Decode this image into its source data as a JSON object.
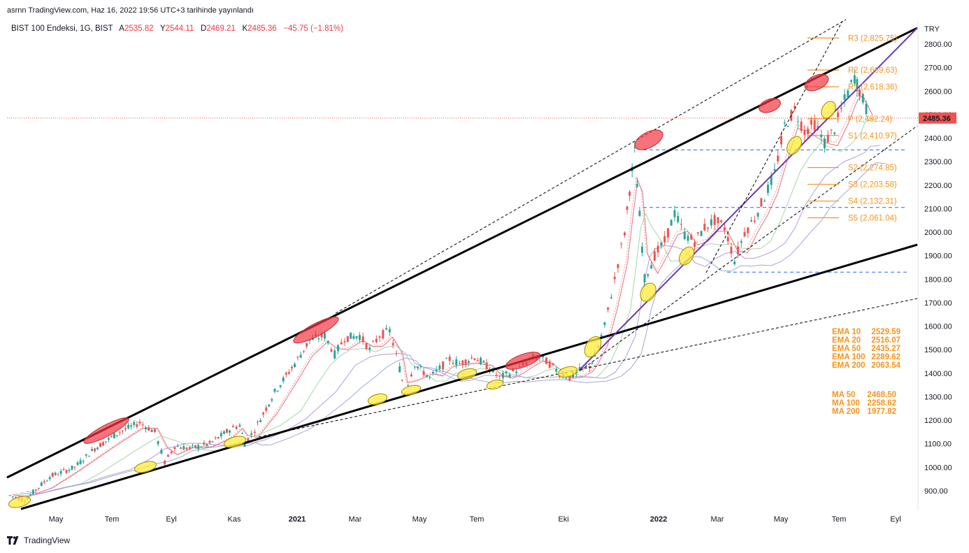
{
  "header": {
    "text": "asrnn TradingView.com, Haz 16, 2022 19:56 UTC+3 tarihinde yayınlandı"
  },
  "legend": {
    "symbol": "BIST 100 Endeksi, 1G, BIST",
    "o_label": "A",
    "o": "2535.82",
    "h_label": "Y",
    "h": "2544.11",
    "l_label": "D",
    "l": "2469.21",
    "c_label": "K",
    "c": "2485.36",
    "change": "−45.75 (−1.81%)"
  },
  "footer": {
    "brand": "TradingView",
    "icon": "tradingview-logo-icon"
  },
  "colors": {
    "up": "#26a69a",
    "down": "#ef5350",
    "pivot": "#f7931a",
    "trend": "#000000",
    "purple": "#6a3ab2"
  },
  "chart_data": {
    "type": "candlestick",
    "currency": "TRY",
    "last_price": "2485.36",
    "y_ticks": [
      "2800.00",
      "2700.00",
      "2600.00",
      "2500.00",
      "2400.00",
      "2300.00",
      "2200.00",
      "2100.00",
      "2000.00",
      "1900.00",
      "1800.00",
      "1700.00",
      "1600.00",
      "1500.00",
      "1400.00",
      "1300.00",
      "1200.00",
      "1100.00",
      "1000.00",
      "900.00"
    ],
    "x_ticks": [
      "May",
      "Tem",
      "Eyl",
      "Kas",
      "2021",
      "Mar",
      "May",
      "Tem",
      "Eki",
      "2022",
      "Mar",
      "May",
      "Tem",
      "Eyl"
    ],
    "pivots": [
      {
        "label": "R3 (2,825.75)",
        "value": 2825.75
      },
      {
        "label": "R2 (2,689.63)",
        "value": 2689.63
      },
      {
        "label": "R1 (2,618.36)",
        "value": 2618.36
      },
      {
        "label": "P (2,482.24)",
        "value": 2482.24
      },
      {
        "label": "S1 (2,410.97)",
        "value": 2410.97
      },
      {
        "label": "S2 (2,274.85)",
        "value": 2274.85
      },
      {
        "label": "S3 (2,203.58)",
        "value": 2203.58
      },
      {
        "label": "S4 (2,132.31)",
        "value": 2132.31
      },
      {
        "label": "S5 (2,061.04)",
        "value": 2061.04
      }
    ],
    "ema": [
      {
        "label": "EMA 10",
        "value": "2529.59"
      },
      {
        "label": "EMA 20",
        "value": "2516.07"
      },
      {
        "label": "EMA 50",
        "value": "2435.27"
      },
      {
        "label": "EMA 100",
        "value": "2289.62"
      },
      {
        "label": "EMA 200",
        "value": "2063.54"
      }
    ],
    "ma": [
      {
        "label": "MA 50",
        "value": "2468.50"
      },
      {
        "label": "MA 100",
        "value": "2258.62"
      },
      {
        "label": "MA 200",
        "value": "1977.82"
      }
    ],
    "hlines": [
      2350,
      2105,
      1830
    ],
    "price_path": [
      [
        0,
        880
      ],
      [
        3,
        860
      ],
      [
        8,
        960
      ],
      [
        13,
        1000
      ],
      [
        17,
        1080
      ],
      [
        22,
        1150
      ],
      [
        26,
        1190
      ],
      [
        29,
        1150
      ],
      [
        31,
        1020
      ],
      [
        33,
        1090
      ],
      [
        36,
        1080
      ],
      [
        40,
        1100
      ],
      [
        44,
        1160
      ],
      [
        46,
        1180
      ],
      [
        47,
        1100
      ],
      [
        49,
        1160
      ],
      [
        53,
        1320
      ],
      [
        57,
        1440
      ],
      [
        60,
        1540
      ],
      [
        63,
        1560
      ],
      [
        65,
        1480
      ],
      [
        67,
        1550
      ],
      [
        70,
        1560
      ],
      [
        72,
        1500
      ],
      [
        74,
        1560
      ],
      [
        76,
        1580
      ],
      [
        78,
        1420
      ],
      [
        79,
        1320
      ],
      [
        81,
        1440
      ],
      [
        84,
        1380
      ],
      [
        86,
        1420
      ],
      [
        88,
        1460
      ],
      [
        90,
        1440
      ],
      [
        93,
        1470
      ],
      [
        96,
        1420
      ],
      [
        98,
        1380
      ],
      [
        100,
        1400
      ],
      [
        102,
        1420
      ],
      [
        104,
        1460
      ],
      [
        106,
        1470
      ],
      [
        108,
        1440
      ],
      [
        110,
        1400
      ],
      [
        112,
        1380
      ],
      [
        114,
        1410
      ],
      [
        116,
        1430
      ],
      [
        117,
        1470
      ],
      [
        119,
        1600
      ],
      [
        121,
        1800
      ],
      [
        123,
        2000
      ],
      [
        124,
        2180
      ],
      [
        125,
        2340
      ],
      [
        126,
        2070
      ],
      [
        127,
        1800
      ],
      [
        129,
        1900
      ],
      [
        131,
        1960
      ],
      [
        133,
        2080
      ],
      [
        135,
        1990
      ],
      [
        137,
        1960
      ],
      [
        139,
        2020
      ],
      [
        141,
        2050
      ],
      [
        143,
        2020
      ],
      [
        145,
        1880
      ],
      [
        147,
        2000
      ],
      [
        149,
        2060
      ],
      [
        151,
        2150
      ],
      [
        153,
        2250
      ],
      [
        155,
        2450
      ],
      [
        157,
        2520
      ],
      [
        159,
        2430
      ],
      [
        161,
        2460
      ],
      [
        163,
        2380
      ],
      [
        165,
        2440
      ],
      [
        167,
        2560
      ],
      [
        169,
        2660
      ],
      [
        170,
        2600
      ],
      [
        172,
        2485.36
      ]
    ]
  }
}
